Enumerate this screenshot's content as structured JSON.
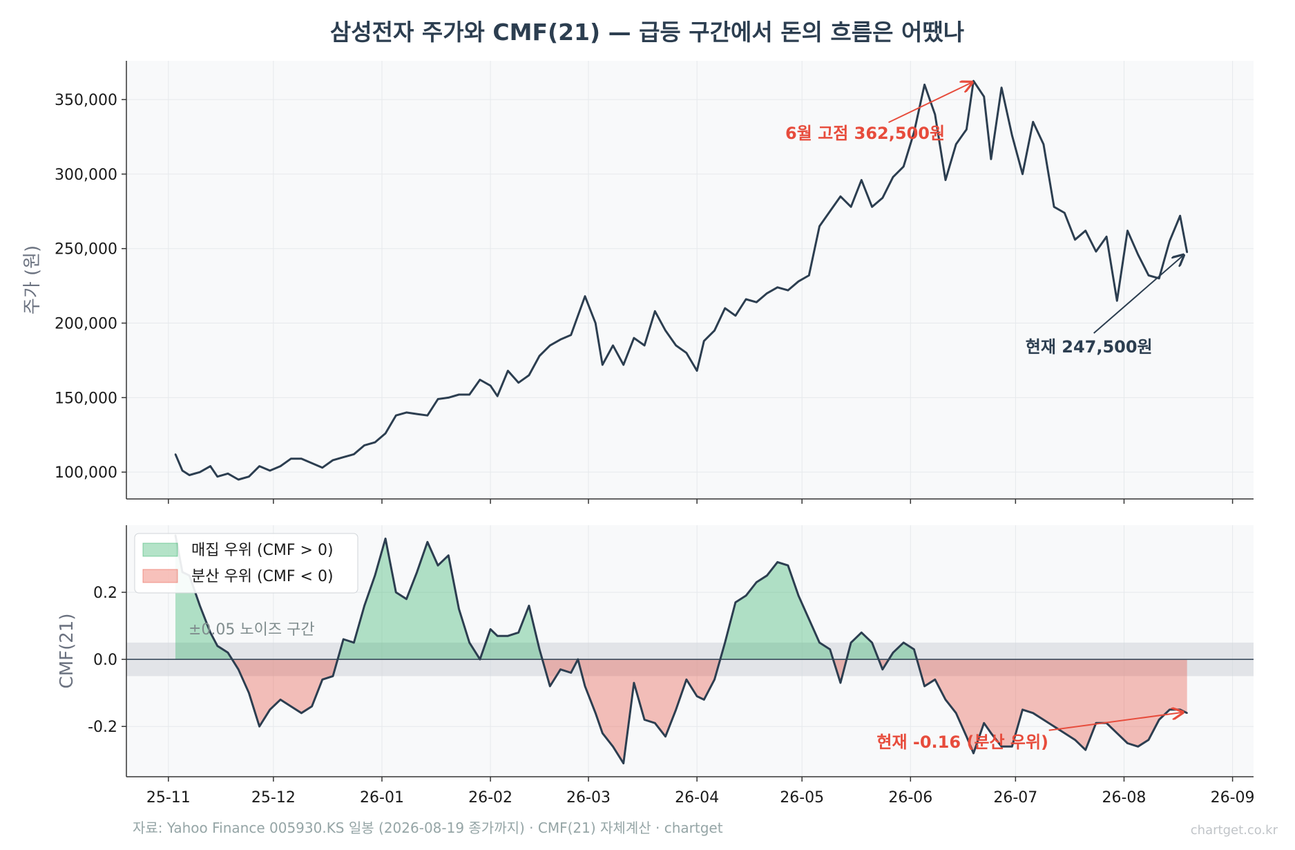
{
  "title": "삼성전자 주가와 CMF(21) — 급등 구간에서 돈의 흐름은 어땠나",
  "footer": {
    "source": "자료: Yahoo Finance 005930.KS 일봉 (2026-08-19 종가까지) · CMF(21) 자체계산 · chartget",
    "watermark": "chartget.co.kr"
  },
  "colors": {
    "line": "#2c3e50",
    "accumulation": "#27ae60",
    "distribution": "#e74c3c",
    "panel_bg": "#f8f9fa",
    "noise_band": "#cfd4d8",
    "grid": "#e6e9ec"
  },
  "chart_data": [
    {
      "type": "line",
      "name": "price",
      "ylabel": "주가 (원)",
      "ylim": [
        82000,
        376000
      ],
      "yticks": [
        100000,
        150000,
        200000,
        250000,
        300000,
        350000
      ],
      "ytick_labels": [
        "100,000",
        "150,000",
        "200,000",
        "250,000",
        "300,000",
        "350,000"
      ],
      "xticks": [
        "2025-11-01",
        "2025-12-01",
        "2026-01-01",
        "2026-02-01",
        "2026-03-01",
        "2026-04-01",
        "2026-05-01",
        "2026-06-01",
        "2026-07-01",
        "2026-08-01",
        "2026-09-01"
      ],
      "xtick_labels": [
        "25-11",
        "25-12",
        "26-01",
        "26-02",
        "26-03",
        "26-04",
        "26-05",
        "26-06",
        "26-07",
        "26-08",
        "26-09"
      ],
      "grid": true,
      "x": [
        "2025-11-03",
        "2025-11-05",
        "2025-11-07",
        "2025-11-10",
        "2025-11-13",
        "2025-11-15",
        "2025-11-18",
        "2025-11-21",
        "2025-11-24",
        "2025-11-27",
        "2025-11-30",
        "2025-12-03",
        "2025-12-06",
        "2025-12-09",
        "2025-12-12",
        "2025-12-15",
        "2025-12-18",
        "2025-12-21",
        "2025-12-24",
        "2025-12-27",
        "2025-12-30",
        "2026-01-02",
        "2026-01-05",
        "2026-01-08",
        "2026-01-11",
        "2026-01-14",
        "2026-01-17",
        "2026-01-20",
        "2026-01-23",
        "2026-01-26",
        "2026-01-29",
        "2026-02-01",
        "2026-02-03",
        "2026-02-06",
        "2026-02-09",
        "2026-02-12",
        "2026-02-15",
        "2026-02-18",
        "2026-02-21",
        "2026-02-24",
        "2026-02-26",
        "2026-02-28",
        "2026-03-03",
        "2026-03-05",
        "2026-03-08",
        "2026-03-11",
        "2026-03-14",
        "2026-03-17",
        "2026-03-20",
        "2026-03-23",
        "2026-03-26",
        "2026-03-29",
        "2026-04-01",
        "2026-04-03",
        "2026-04-06",
        "2026-04-09",
        "2026-04-12",
        "2026-04-15",
        "2026-04-18",
        "2026-04-21",
        "2026-04-24",
        "2026-04-27",
        "2026-04-30",
        "2026-05-03",
        "2026-05-06",
        "2026-05-09",
        "2026-05-12",
        "2026-05-15",
        "2026-05-18",
        "2026-05-21",
        "2026-05-24",
        "2026-05-27",
        "2026-05-30",
        "2026-06-02",
        "2026-06-05",
        "2026-06-08",
        "2026-06-11",
        "2026-06-14",
        "2026-06-17",
        "2026-06-19",
        "2026-06-22",
        "2026-06-24",
        "2026-06-27",
        "2026-06-30",
        "2026-07-03",
        "2026-07-06",
        "2026-07-09",
        "2026-07-12",
        "2026-07-15",
        "2026-07-18",
        "2026-07-21",
        "2026-07-24",
        "2026-07-27",
        "2026-07-30",
        "2026-08-02",
        "2026-08-05",
        "2026-08-08",
        "2026-08-11",
        "2026-08-14",
        "2026-08-17",
        "2026-08-19"
      ],
      "values": [
        112000,
        101000,
        98000,
        100000,
        104000,
        97000,
        99000,
        95000,
        97000,
        104000,
        101000,
        104000,
        109000,
        109000,
        106000,
        103000,
        108000,
        110000,
        112000,
        118000,
        120000,
        126000,
        138000,
        140000,
        139000,
        138000,
        149000,
        150000,
        152000,
        152000,
        162000,
        158000,
        151000,
        168000,
        160000,
        165000,
        178000,
        185000,
        189000,
        192000,
        205000,
        218000,
        200000,
        172000,
        185000,
        172000,
        190000,
        185000,
        208000,
        195000,
        185000,
        180000,
        168000,
        188000,
        195000,
        210000,
        205000,
        216000,
        214000,
        220000,
        224000,
        222000,
        228000,
        232000,
        265000,
        275000,
        285000,
        278000,
        296000,
        278000,
        284000,
        298000,
        305000,
        328000,
        360000,
        340000,
        296000,
        320000,
        330000,
        362500,
        352000,
        310000,
        358000,
        326000,
        300000,
        335000,
        320000,
        278000,
        274000,
        256000,
        262000,
        248000,
        258000,
        215000,
        262000,
        246000,
        232000,
        230000,
        255000,
        272000,
        247500
      ],
      "annotations": [
        {
          "text": "6월 고점 362,500원",
          "x": "2026-06-19",
          "y": 362500,
          "color": "#e74c3c"
        },
        {
          "text": "현재 247,500원",
          "x": "2026-08-19",
          "y": 247500,
          "color": "#2c3e50"
        }
      ]
    },
    {
      "type": "area",
      "name": "CMF(21)",
      "ylabel": "CMF(21)",
      "ylim": [
        -0.35,
        0.4
      ],
      "yticks": [
        -0.2,
        0.0,
        0.2
      ],
      "ytick_labels": [
        "-0.2",
        "0.0",
        "0.2"
      ],
      "noise_band": [
        -0.05,
        0.05
      ],
      "noise_band_label": "±0.05 노이즈 구간",
      "legend": [
        "매집 우위 (CMF > 0)",
        "분산 우위 (CMF < 0)"
      ],
      "legend_position": "top-left",
      "grid": true,
      "x": [
        "2025-11-03",
        "2025-11-05",
        "2025-11-07",
        "2025-11-10",
        "2025-11-13",
        "2025-11-15",
        "2025-11-18",
        "2025-11-21",
        "2025-11-24",
        "2025-11-27",
        "2025-11-30",
        "2025-12-03",
        "2025-12-06",
        "2025-12-09",
        "2025-12-12",
        "2025-12-15",
        "2025-12-18",
        "2025-12-21",
        "2025-12-24",
        "2025-12-27",
        "2025-12-30",
        "2026-01-02",
        "2026-01-05",
        "2026-01-08",
        "2026-01-11",
        "2026-01-14",
        "2026-01-17",
        "2026-01-20",
        "2026-01-23",
        "2026-01-26",
        "2026-01-29",
        "2026-02-01",
        "2026-02-03",
        "2026-02-06",
        "2026-02-09",
        "2026-02-12",
        "2026-02-15",
        "2026-02-18",
        "2026-02-21",
        "2026-02-24",
        "2026-02-26",
        "2026-02-28",
        "2026-03-03",
        "2026-03-05",
        "2026-03-08",
        "2026-03-11",
        "2026-03-14",
        "2026-03-17",
        "2026-03-20",
        "2026-03-23",
        "2026-03-26",
        "2026-03-29",
        "2026-04-01",
        "2026-04-03",
        "2026-04-06",
        "2026-04-09",
        "2026-04-12",
        "2026-04-15",
        "2026-04-18",
        "2026-04-21",
        "2026-04-24",
        "2026-04-27",
        "2026-04-30",
        "2026-05-03",
        "2026-05-06",
        "2026-05-09",
        "2026-05-12",
        "2026-05-15",
        "2026-05-18",
        "2026-05-21",
        "2026-05-24",
        "2026-05-27",
        "2026-05-30",
        "2026-06-02",
        "2026-06-05",
        "2026-06-08",
        "2026-06-11",
        "2026-06-14",
        "2026-06-17",
        "2026-06-19",
        "2026-06-22",
        "2026-06-24",
        "2026-06-27",
        "2026-06-30",
        "2026-07-03",
        "2026-07-06",
        "2026-07-09",
        "2026-07-12",
        "2026-07-15",
        "2026-07-18",
        "2026-07-21",
        "2026-07-24",
        "2026-07-27",
        "2026-07-30",
        "2026-08-02",
        "2026-08-05",
        "2026-08-08",
        "2026-08-11",
        "2026-08-14",
        "2026-08-17",
        "2026-08-19"
      ],
      "values": [
        0.37,
        0.26,
        0.25,
        0.16,
        0.08,
        0.04,
        0.02,
        -0.03,
        -0.1,
        -0.2,
        -0.15,
        -0.12,
        -0.14,
        -0.16,
        -0.14,
        -0.06,
        -0.05,
        0.06,
        0.05,
        0.16,
        0.25,
        0.36,
        0.2,
        0.18,
        0.26,
        0.35,
        0.28,
        0.31,
        0.15,
        0.05,
        0.0,
        0.09,
        0.07,
        0.07,
        0.08,
        0.16,
        0.03,
        -0.08,
        -0.03,
        -0.04,
        0.0,
        -0.08,
        -0.16,
        -0.22,
        -0.26,
        -0.31,
        -0.07,
        -0.18,
        -0.19,
        -0.23,
        -0.15,
        -0.06,
        -0.11,
        -0.12,
        -0.06,
        0.05,
        0.17,
        0.19,
        0.23,
        0.25,
        0.29,
        0.28,
        0.19,
        0.12,
        0.05,
        0.03,
        -0.07,
        0.05,
        0.08,
        0.05,
        -0.03,
        0.02,
        0.05,
        0.03,
        -0.08,
        -0.06,
        -0.12,
        -0.16,
        -0.23,
        -0.28,
        -0.19,
        -0.22,
        -0.26,
        -0.26,
        -0.15,
        -0.16,
        -0.18,
        -0.2,
        -0.22,
        -0.24,
        -0.27,
        -0.19,
        -0.19,
        -0.22,
        -0.25,
        -0.26,
        -0.24,
        -0.18,
        -0.15,
        -0.15,
        -0.16
      ],
      "annotations": [
        {
          "text": "현재 -0.16 (분산 우위)",
          "x": "2026-08-19",
          "y": -0.16,
          "color": "#e74c3c"
        }
      ]
    }
  ]
}
